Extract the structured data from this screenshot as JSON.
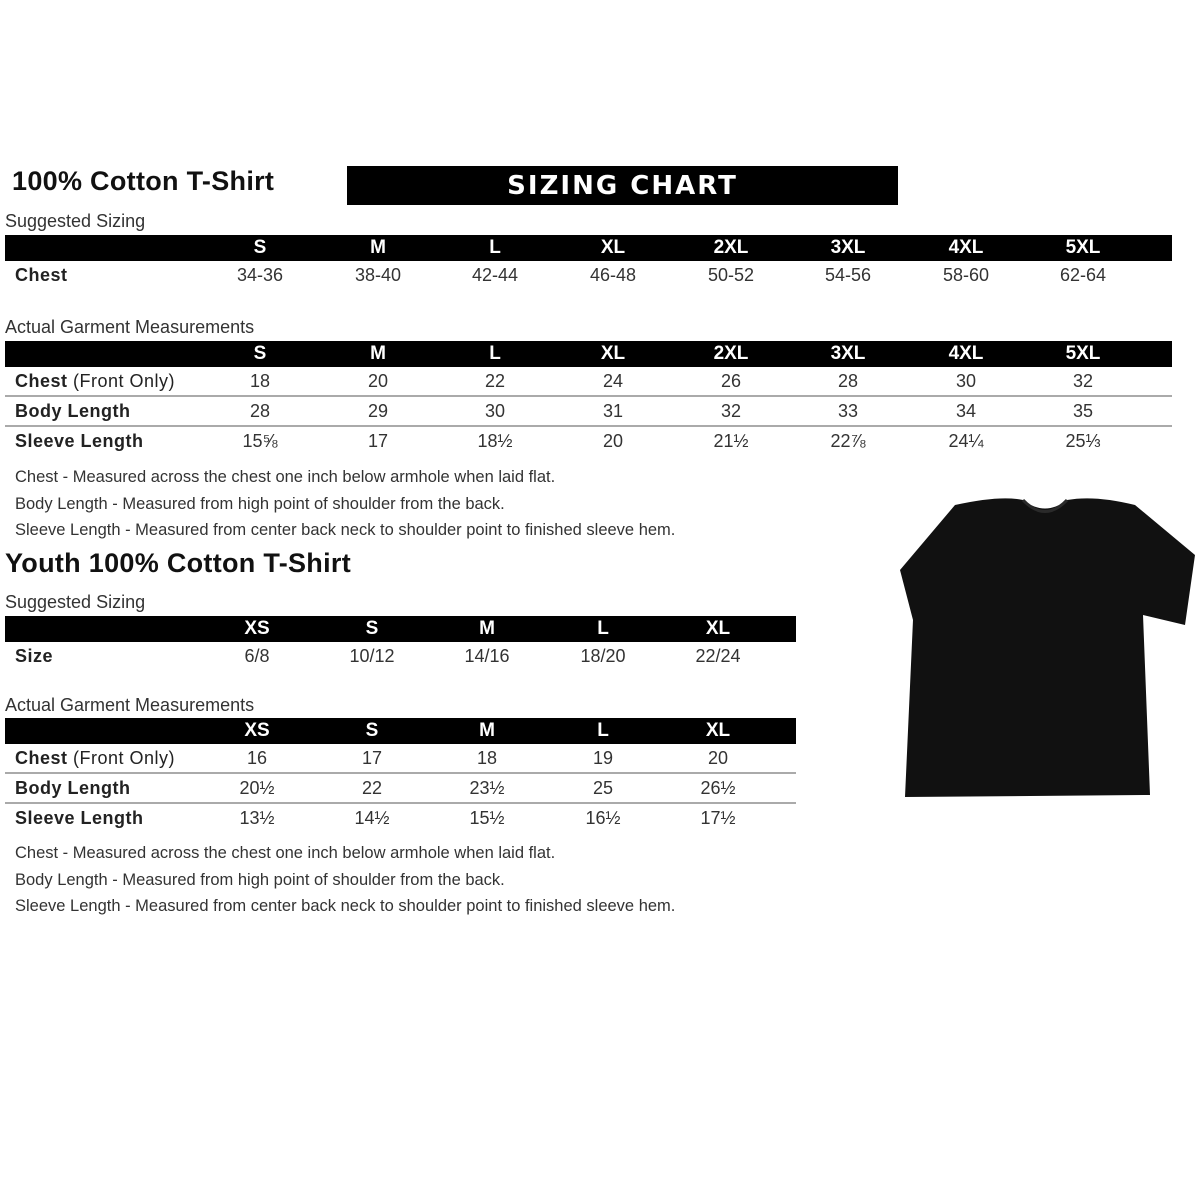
{
  "adult": {
    "title": "100% Cotton T-Shirt",
    "banner": "SIZING CHART",
    "suggested_label": "Suggested Sizing",
    "sizes": [
      "S",
      "M",
      "L",
      "XL",
      "2XL",
      "3XL",
      "4XL",
      "5XL"
    ],
    "suggested_rows": [
      {
        "label": "Chest",
        "label_note": "",
        "values": [
          "34-36",
          "38-40",
          "42-44",
          "46-48",
          "50-52",
          "54-56",
          "58-60",
          "62-64"
        ]
      }
    ],
    "actual_label": "Actual Garment Measurements",
    "actual_rows": [
      {
        "label": "Chest",
        "label_note": " (Front Only)",
        "values": [
          "18",
          "20",
          "22",
          "24",
          "26",
          "28",
          "30",
          "32"
        ]
      },
      {
        "label": "Body Length",
        "label_note": "",
        "values": [
          "28",
          "29",
          "30",
          "31",
          "32",
          "33",
          "34",
          "35"
        ]
      },
      {
        "label": "Sleeve Length",
        "label_note": "",
        "values": [
          "15⅝",
          "17",
          "18½",
          "20",
          "21½",
          "22⅞",
          "24¼",
          "25⅓"
        ]
      }
    ],
    "notes": [
      "Chest - Measured across the chest one inch below armhole when laid flat.",
      "Body Length - Measured from high point of shoulder from the back.",
      "Sleeve Length - Measured from center back neck to shoulder point to finished sleeve hem."
    ]
  },
  "youth": {
    "title": "Youth 100% Cotton T-Shirt",
    "suggested_label": "Suggested Sizing",
    "sizes": [
      "XS",
      "S",
      "M",
      "L",
      "XL"
    ],
    "suggested_rows": [
      {
        "label": "Size",
        "label_note": "",
        "values": [
          "6/8",
          "10/12",
          "14/16",
          "18/20",
          "22/24"
        ]
      }
    ],
    "actual_label": "Actual Garment Measurements",
    "actual_rows": [
      {
        "label": "Chest",
        "label_note": " (Front Only)",
        "values": [
          "16",
          "17",
          "18",
          "19",
          "20"
        ]
      },
      {
        "label": "Body Length",
        "label_note": "",
        "values": [
          "20½",
          "22",
          "23½",
          "25",
          "26½"
        ]
      },
      {
        "label": "Sleeve Length",
        "label_note": "",
        "values": [
          "13½",
          "14½",
          "15½",
          "16½",
          "17½"
        ]
      }
    ],
    "notes": [
      "Chest - Measured across the chest one inch below armhole when laid flat.",
      "Body Length - Measured from high point of shoulder from the back.",
      "Sleeve Length - Measured from center back neck to shoulder point to finished sleeve hem."
    ]
  },
  "image": {
    "icon": "black-tshirt-icon",
    "color": "#111111"
  }
}
